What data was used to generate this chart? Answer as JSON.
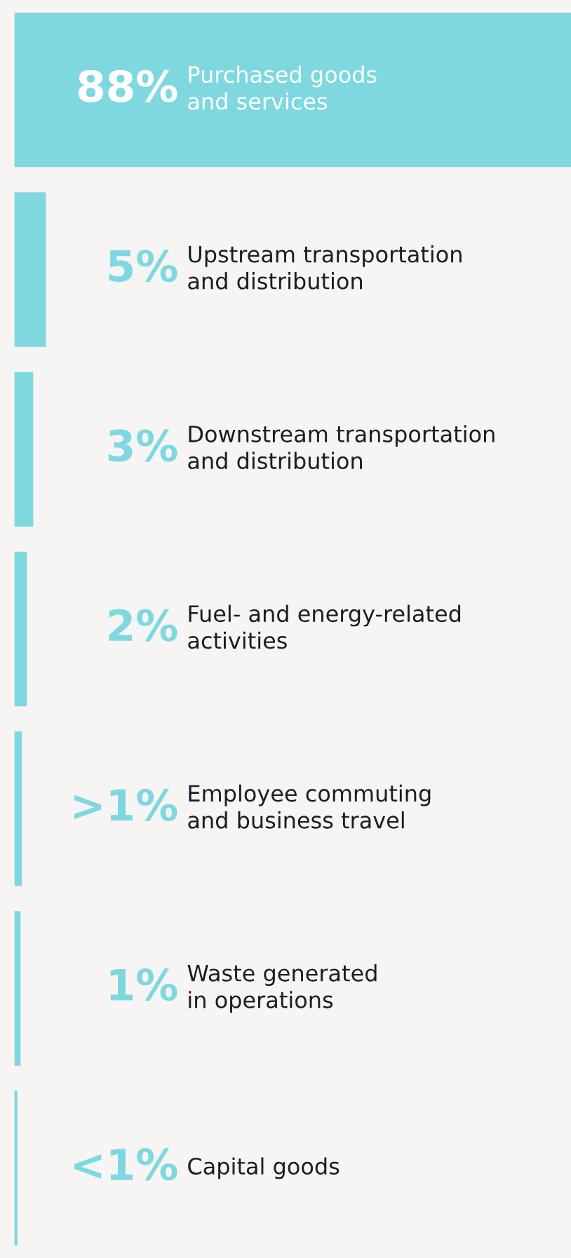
{
  "chart_data": {
    "type": "bar",
    "orientation": "horizontal",
    "categories": [
      "Purchased goods\nand services",
      "Upstream transportation\nand distribution",
      "Downstream transportation\nand distribution",
      "Fuel- and energy-related\nactivities",
      "Employee commuting\nand business travel",
      "Waste generated\nin operations",
      "Capital goods"
    ],
    "values": [
      88,
      5,
      3,
      2,
      1.2,
      1,
      0.5
    ],
    "value_labels": [
      "88%",
      "5%",
      "3%",
      "2%",
      ">1%",
      "1%",
      "<1%"
    ],
    "color": "#7fd8e0",
    "tick_labels": false
  }
}
